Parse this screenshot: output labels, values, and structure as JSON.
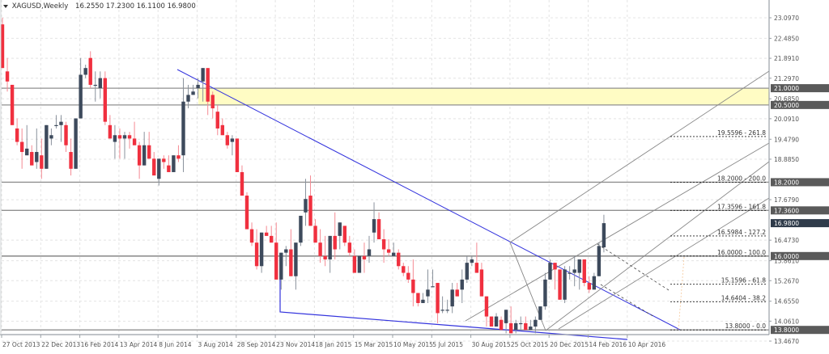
{
  "header": {
    "symbol": "XAGUSD,Weekly",
    "ohlc": "16.2550 17.2300 16.1100 16.9800"
  },
  "colors": {
    "bull": "#3d4a5c",
    "bear": "#f0303f",
    "trendline": "#3333dd",
    "zone": "#fffcc4",
    "hline": "#909090",
    "channel": "#888888",
    "grid": "#e4e4e4",
    "axis": "#9aa0a6",
    "tag_bg": "#5a5a5a"
  },
  "chart_data": {
    "type": "candlestick",
    "title": "XAGUSD,Weekly",
    "ohlc_last": {
      "open": 16.255,
      "high": 17.23,
      "low": 16.11,
      "close": 16.98
    },
    "y_axis": {
      "ticks": [
        "23.0970",
        "22.4850",
        "21.8910",
        "21.2970",
        "20.6850",
        "20.0910",
        "19.4790",
        "18.8850",
        "17.6790",
        "16.4730",
        "15.8610",
        "15.2670",
        "14.6550",
        "14.0610",
        "13.4670"
      ],
      "range": [
        13.467,
        23.097
      ]
    },
    "x_axis": {
      "ticks": [
        "27 Oct 2013",
        "22 Dec 2013",
        "16 Feb 2014",
        "13 Apr 2014",
        "8 Jun 2014",
        "3 Aug 2014",
        "28 Sep 2014",
        "23 Nov 2014",
        "18 Jan 2015",
        "15 Mar 2015",
        "10 May 2015",
        "5 Jul 2015",
        "30 Aug 2015",
        "25 Oct 2015",
        "20 Dec 2015",
        "14 Feb 2016",
        "10 Apr 2016"
      ]
    },
    "price_tags": [
      {
        "value": "21.0000"
      },
      {
        "value": "20.5000"
      },
      {
        "value": "18.2000"
      },
      {
        "value": "17.3600"
      },
      {
        "value": "16.9800",
        "current": true
      },
      {
        "value": "16.0000"
      },
      {
        "value": "13.8000"
      }
    ],
    "horizontal_lines": [
      21.0,
      20.5,
      18.2,
      17.36,
      16.0,
      13.8
    ],
    "resistance_zone": {
      "from": 20.5,
      "to": 21.0
    },
    "fibonacci_levels": [
      {
        "label": "19.5596 - 261.8",
        "price": 19.5596
      },
      {
        "label": "18.2000 - 200.0",
        "price": 18.2
      },
      {
        "label": "17.3596 - 161.8",
        "price": 17.3596
      },
      {
        "label": "16.5984 - 127.2",
        "price": 16.5984
      },
      {
        "label": "16.0000 - 100.0",
        "price": 16.0
      },
      {
        "label": "15.1596 - 61.8",
        "price": 15.1596
      },
      {
        "label": "14.6404 - 38.2",
        "price": 14.6404
      },
      {
        "label": "13.8000 - 0.0",
        "price": 13.8
      }
    ],
    "candles": [
      [
        22.9,
        23.1,
        21.7,
        21.6
      ],
      [
        21.5,
        21.9,
        20.9,
        21.2
      ],
      [
        21.1,
        21.1,
        19.9,
        19.9
      ],
      [
        19.8,
        20.1,
        19.3,
        19.4
      ],
      [
        19.4,
        19.8,
        18.6,
        19.1
      ],
      [
        19.0,
        19.9,
        19.0,
        19.2
      ],
      [
        19.1,
        19.3,
        18.8,
        18.7
      ],
      [
        18.8,
        19.8,
        18.6,
        19.1
      ],
      [
        19.0,
        19.5,
        18.3,
        18.6
      ],
      [
        18.6,
        19.9,
        18.6,
        19.9
      ],
      [
        19.5,
        19.8,
        19.3,
        19.6
      ],
      [
        19.9,
        20.2,
        19.8,
        19.9
      ],
      [
        19.9,
        20.2,
        19.4,
        20.0
      ],
      [
        19.9,
        20.0,
        19.1,
        19.3
      ],
      [
        19.1,
        19.5,
        18.4,
        18.6
      ],
      [
        18.6,
        20.0,
        18.6,
        20.1
      ],
      [
        20.1,
        21.9,
        20.1,
        21.4
      ],
      [
        21.4,
        21.7,
        21.3,
        21.6
      ],
      [
        21.9,
        22.1,
        21.0,
        21.1
      ],
      [
        21.1,
        21.5,
        20.6,
        21.1
      ],
      [
        21.0,
        21.5,
        20.7,
        21.3
      ],
      [
        21.3,
        21.5,
        19.9,
        20.0
      ],
      [
        19.9,
        20.2,
        19.5,
        19.5
      ],
      [
        19.4,
        19.9,
        18.9,
        19.6
      ],
      [
        19.6,
        19.8,
        18.9,
        19.5
      ],
      [
        19.5,
        19.7,
        18.9,
        19.6
      ],
      [
        19.6,
        19.7,
        19.2,
        19.5
      ],
      [
        19.5,
        20.0,
        19.5,
        19.3
      ],
      [
        19.3,
        19.4,
        18.3,
        18.7
      ],
      [
        18.7,
        19.7,
        18.7,
        19.3
      ],
      [
        19.3,
        19.7,
        18.9,
        18.9
      ],
      [
        18.9,
        19.1,
        18.4,
        18.4
      ],
      [
        18.3,
        18.8,
        18.1,
        18.9
      ],
      [
        18.9,
        19.0,
        18.6,
        18.8
      ],
      [
        18.7,
        19.0,
        18.5,
        18.5
      ],
      [
        18.5,
        19.0,
        18.6,
        19.0
      ],
      [
        19.0,
        19.3,
        18.8,
        18.9
      ],
      [
        19.0,
        21.3,
        18.5,
        20.6
      ],
      [
        20.6,
        21.1,
        20.4,
        20.8
      ],
      [
        20.8,
        21.1,
        20.8,
        20.9
      ],
      [
        21.0,
        21.3,
        20.7,
        21.1
      ],
      [
        21.2,
        21.6,
        20.6,
        21.6
      ],
      [
        21.6,
        21.4,
        20.2,
        20.6
      ],
      [
        20.8,
        20.9,
        20.1,
        20.4
      ],
      [
        20.3,
        20.5,
        19.6,
        19.8
      ],
      [
        19.9,
        20.1,
        19.6,
        19.6
      ],
      [
        19.6,
        19.7,
        19.2,
        19.3
      ],
      [
        19.4,
        19.6,
        19.0,
        19.5
      ],
      [
        19.5,
        19.4,
        18.9,
        18.5
      ],
      [
        18.5,
        18.7,
        17.9,
        17.8
      ],
      [
        17.8,
        17.9,
        17.1,
        16.8
      ],
      [
        16.8,
        17.0,
        16.3,
        16.4
      ],
      [
        16.4,
        16.8,
        15.6,
        15.7
      ],
      [
        15.7,
        16.7,
        15.5,
        16.7
      ],
      [
        16.7,
        16.9,
        16.6,
        16.6
      ],
      [
        16.6,
        16.9,
        16.4,
        16.4
      ],
      [
        16.4,
        17.0,
        15.3,
        15.3
      ],
      [
        15.3,
        16.1,
        15.0,
        16.1
      ],
      [
        16.1,
        16.3,
        15.7,
        16.2
      ],
      [
        16.2,
        16.8,
        15.5,
        15.4
      ],
      [
        15.4,
        16.4,
        15.0,
        16.4
      ],
      [
        16.4,
        17.1,
        16.3,
        17.2
      ],
      [
        17.3,
        18.3,
        16.9,
        17.7
      ],
      [
        17.8,
        18.4,
        17.3,
        16.9
      ],
      [
        16.9,
        17.1,
        16.5,
        16.4
      ],
      [
        16.4,
        16.8,
        15.8,
        16.0
      ],
      [
        16.0,
        16.6,
        15.7,
        15.9
      ],
      [
        15.9,
        16.5,
        15.5,
        16.6
      ],
      [
        16.6,
        17.3,
        15.9,
        16.2
      ],
      [
        16.6,
        17.0,
        16.2,
        17.0
      ],
      [
        16.9,
        16.9,
        16.3,
        16.4
      ],
      [
        16.4,
        16.6,
        16.0,
        16.1
      ],
      [
        16.0,
        16.2,
        15.5,
        15.5
      ],
      [
        15.5,
        16.0,
        15.7,
        16.0
      ],
      [
        16.0,
        16.4,
        15.5,
        15.9
      ],
      [
        16.0,
        16.6,
        15.8,
        16.2
      ],
      [
        16.7,
        17.6,
        16.4,
        17.1
      ],
      [
        17.1,
        17.3,
        16.5,
        16.5
      ],
      [
        16.5,
        16.8,
        15.8,
        16.2
      ],
      [
        16.2,
        16.5,
        16.0,
        16.1
      ],
      [
        16.0,
        16.4,
        16.0,
        16.1
      ],
      [
        16.1,
        16.2,
        15.6,
        15.7
      ],
      [
        15.7,
        15.8,
        15.4,
        15.5
      ],
      [
        15.5,
        15.7,
        15.2,
        15.3
      ],
      [
        15.3,
        15.9,
        14.5,
        14.9
      ],
      [
        14.9,
        14.9,
        14.5,
        14.6
      ],
      [
        14.6,
        14.9,
        14.6,
        14.7
      ],
      [
        14.8,
        15.6,
        14.6,
        15.0
      ],
      [
        15.1,
        15.6,
        15.2,
        15.1
      ],
      [
        15.2,
        15.2,
        14.0,
        14.3
      ],
      [
        14.4,
        14.8,
        14.3,
        14.4
      ],
      [
        14.4,
        14.7,
        14.3,
        14.4
      ],
      [
        14.5,
        15.2,
        14.3,
        15.0
      ],
      [
        15.0,
        15.2,
        14.9,
        14.8
      ],
      [
        15.0,
        15.6,
        14.6,
        15.3
      ],
      [
        15.3,
        16.0,
        15.2,
        15.8
      ],
      [
        15.8,
        16.0,
        15.7,
        15.9
      ],
      [
        15.8,
        16.4,
        15.8,
        15.5
      ],
      [
        15.6,
        15.8,
        15.1,
        14.8
      ],
      [
        14.8,
        14.6,
        13.9,
        14.2
      ],
      [
        14.2,
        14.2,
        13.9,
        13.9
      ],
      [
        13.9,
        14.3,
        13.9,
        14.2
      ],
      [
        14.1,
        14.2,
        13.9,
        13.8
      ],
      [
        14.0,
        14.3,
        13.7,
        14.4
      ],
      [
        14.0,
        14.5,
        13.9,
        13.7
      ],
      [
        13.8,
        14.1,
        13.7,
        14.0
      ],
      [
        14.0,
        14.2,
        13.8,
        14.0
      ],
      [
        14.0,
        14.2,
        13.9,
        13.8
      ],
      [
        13.8,
        14.1,
        13.8,
        13.9
      ],
      [
        13.9,
        14.2,
        13.7,
        14.1
      ],
      [
        14.1,
        14.4,
        14.1,
        14.5
      ],
      [
        14.5,
        15.5,
        14.4,
        15.3
      ],
      [
        15.3,
        15.9,
        15.3,
        15.8
      ],
      [
        15.8,
        15.8,
        15.0,
        15.6
      ],
      [
        15.6,
        15.4,
        14.8,
        14.7
      ],
      [
        14.7,
        15.7,
        14.6,
        15.6
      ],
      [
        15.5,
        15.7,
        15.3,
        15.5
      ],
      [
        15.5,
        16.0,
        15.1,
        15.6
      ],
      [
        15.5,
        15.8,
        15.0,
        15.9
      ],
      [
        15.9,
        15.8,
        15.1,
        15.2
      ],
      [
        15.2,
        15.4,
        14.9,
        15.0
      ],
      [
        15.0,
        15.5,
        15.0,
        15.4
      ],
      [
        15.4,
        16.4,
        15.4,
        16.3
      ],
      [
        16.26,
        17.23,
        16.11,
        16.98
      ]
    ]
  }
}
